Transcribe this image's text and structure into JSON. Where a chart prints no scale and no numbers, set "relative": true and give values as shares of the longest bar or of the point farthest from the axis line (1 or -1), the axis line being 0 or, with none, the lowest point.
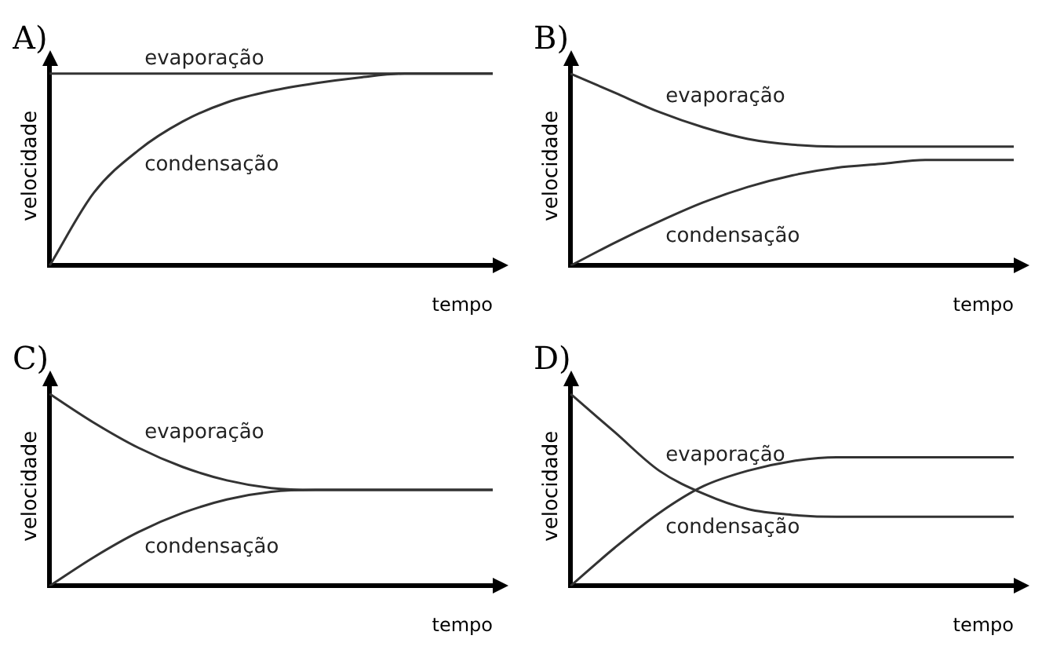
{
  "chart_data": [
    {
      "type": "line",
      "title": "A)",
      "xlabel": "tempo",
      "ylabel": "velocidade",
      "relative": true,
      "categories": [
        null,
        null,
        null,
        null,
        null,
        null,
        null,
        null,
        null,
        null,
        null
      ],
      "series": [
        {
          "name": "evaporação",
          "color": "#333333",
          "values": [
            1,
            1,
            1,
            1,
            1,
            1,
            1,
            1,
            1,
            1,
            1
          ]
        },
        {
          "name": "condensação",
          "color": "#333333",
          "values": [
            0,
            0.38,
            0.6,
            0.75,
            0.85,
            0.91,
            0.95,
            0.98,
            1,
            1,
            1
          ]
        }
      ]
    },
    {
      "type": "line",
      "title": "B)",
      "xlabel": "tempo",
      "ylabel": "velocidade",
      "relative": true,
      "categories": [
        null,
        null,
        null,
        null,
        null,
        null,
        null,
        null,
        null,
        null,
        null
      ],
      "series": [
        {
          "name": "evaporação",
          "color": "#333333",
          "values": [
            1,
            0.9,
            0.8,
            0.72,
            0.66,
            0.63,
            0.62,
            0.62,
            0.62,
            0.62,
            0.62
          ]
        },
        {
          "name": "condensação",
          "color": "#333333",
          "values": [
            0,
            0.12,
            0.23,
            0.33,
            0.41,
            0.47,
            0.51,
            0.53,
            0.55,
            0.55,
            0.55
          ]
        }
      ]
    },
    {
      "type": "line",
      "title": "C)",
      "xlabel": "tempo",
      "ylabel": "velocidade",
      "relative": true,
      "categories": [
        null,
        null,
        null,
        null,
        null,
        null,
        null,
        null,
        null,
        null,
        null
      ],
      "series": [
        {
          "name": "evaporação",
          "color": "#333333",
          "values": [
            1,
            0.85,
            0.72,
            0.62,
            0.55,
            0.51,
            0.5,
            0.5,
            0.5,
            0.5,
            0.5
          ]
        },
        {
          "name": "condensação",
          "color": "#333333",
          "values": [
            0,
            0.15,
            0.28,
            0.38,
            0.45,
            0.49,
            0.5,
            0.5,
            0.5,
            0.5,
            0.5
          ]
        }
      ]
    },
    {
      "type": "line",
      "title": "D)",
      "xlabel": "tempo",
      "ylabel": "velocidade",
      "relative": true,
      "categories": [
        null,
        null,
        null,
        null,
        null,
        null,
        null,
        null,
        null,
        null,
        null
      ],
      "series": [
        {
          "name": "evaporação",
          "color": "#333333",
          "values": [
            1,
            0.8,
            0.6,
            0.48,
            0.4,
            0.37,
            0.36,
            0.36,
            0.36,
            0.36,
            0.36
          ]
        },
        {
          "name": "condensação",
          "color": "#333333",
          "values": [
            0,
            0.2,
            0.38,
            0.52,
            0.6,
            0.65,
            0.67,
            0.67,
            0.67,
            0.67,
            0.67
          ]
        }
      ]
    }
  ]
}
